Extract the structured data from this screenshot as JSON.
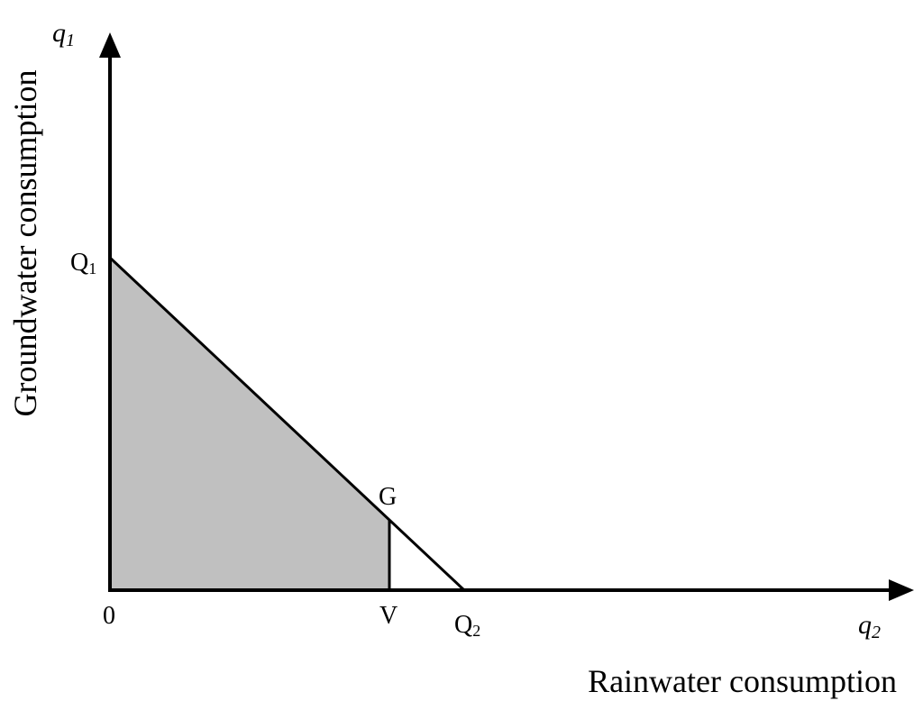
{
  "colors": {
    "shade": "#c0c0c0",
    "stroke": "#000000",
    "background": "#ffffff"
  },
  "y_axis": {
    "variable": "q",
    "variable_subscript": "1",
    "title": "Groundwater consumption"
  },
  "x_axis": {
    "variable": "q",
    "variable_subscript": "2",
    "title": "Rainwater consumption"
  },
  "points": {
    "origin": "0",
    "q1": {
      "letter": "Q",
      "subscript": "1"
    },
    "q2": {
      "letter": "Q",
      "subscript": "2"
    },
    "g": "G",
    "v": "V"
  }
}
